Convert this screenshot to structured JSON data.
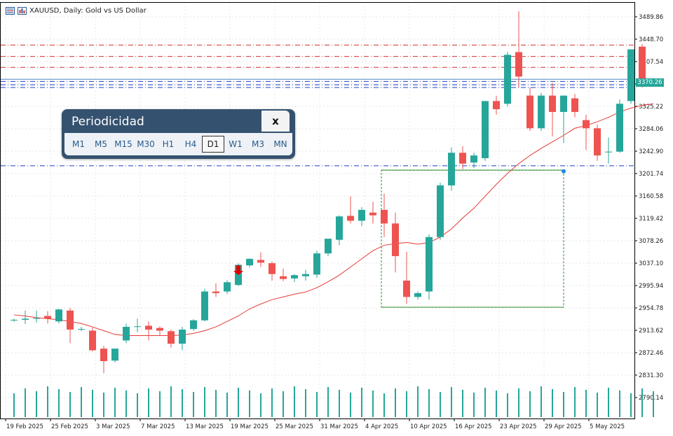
{
  "header": {
    "title": "XAUUSD, Daily:  Gold vs US Dollar",
    "icons": [
      "chart-window-icon",
      "bar-chart-icon"
    ]
  },
  "current_price": "3370.26",
  "colors": {
    "bull": "#26a69a",
    "bear": "#ef5350",
    "ma": "#e53935",
    "red_levels": "#d32f2f",
    "blue_levels": "#1a3fbf",
    "box": "#2e8b2e",
    "panel": "#34526f"
  },
  "periodicity_panel": {
    "title": "Periodicidad",
    "close_label": "x",
    "timeframes": [
      "M1",
      "M5",
      "M15",
      "M30",
      "H1",
      "H4",
      "D1",
      "W1",
      "M3",
      "MN"
    ],
    "selected": "D1"
  },
  "chart_data": {
    "type": "candlestick",
    "title": "XAUUSD, Daily:  Gold vs US Dollar",
    "y_ticks": [
      "3489.86",
      "3448.70",
      "3407.54",
      "3366.38",
      "3325.22",
      "3284.06",
      "3242.90",
      "3201.74",
      "3160.58",
      "3119.42",
      "3078.26",
      "3037.10",
      "2995.94",
      "2954.78",
      "2913.62",
      "2872.46",
      "2831.30",
      "2790.14"
    ],
    "x_ticks": [
      "19 Feb 2025",
      "25 Feb 2025",
      "3 Mar 2025",
      "7 Mar 2025",
      "13 Mar 2025",
      "19 Mar 2025",
      "25 Mar 2025",
      "31 Mar 2025",
      "4 Apr 2025",
      "10 Apr 2025",
      "16 Apr 2025",
      "23 Apr 2025",
      "29 Apr 2025",
      "5 May 2025"
    ],
    "ylim": [
      2775,
      3505
    ],
    "grid": true,
    "candles": [
      [
        2932,
        2935,
        2929,
        2933
      ],
      [
        2933,
        2950,
        2925,
        2935
      ],
      [
        2935,
        2950,
        2928,
        2936
      ],
      [
        2940,
        2949,
        2926,
        2935
      ],
      [
        2930,
        2953,
        2926,
        2952
      ],
      [
        2950,
        2955,
        2890,
        2915
      ],
      [
        2915,
        2920,
        2912,
        2916
      ],
      [
        2913,
        2919,
        2875,
        2877
      ],
      [
        2880,
        2885,
        2835,
        2857
      ],
      [
        2858,
        2880,
        2855,
        2880
      ],
      [
        2895,
        2926,
        2890,
        2920
      ],
      [
        2920,
        2935,
        2910,
        2921
      ],
      [
        2922,
        2930,
        2895,
        2915
      ],
      [
        2918,
        2921,
        2905,
        2913
      ],
      [
        2912,
        2915,
        2882,
        2889
      ],
      [
        2889,
        2920,
        2877,
        2915
      ],
      [
        2916,
        2934,
        2913,
        2932
      ],
      [
        2932,
        2990,
        2930,
        2985
      ],
      [
        2985,
        3000,
        2975,
        2982
      ],
      [
        2985,
        3006,
        2980,
        3002
      ],
      [
        2997,
        3037,
        2995,
        3034
      ],
      [
        3033,
        3046,
        3029,
        3045
      ],
      [
        3043,
        3057,
        3030,
        3038
      ],
      [
        3037,
        3040,
        3005,
        3017
      ],
      [
        3013,
        3027,
        3004,
        3008
      ],
      [
        3009,
        3017,
        3002,
        3015
      ],
      [
        3013,
        3025,
        3005,
        3017
      ],
      [
        3016,
        3060,
        3010,
        3055
      ],
      [
        3055,
        3080,
        3050,
        3082
      ],
      [
        3080,
        3125,
        3070,
        3123
      ],
      [
        3124,
        3160,
        3110,
        3115
      ],
      [
        3115,
        3140,
        3105,
        3135
      ],
      [
        3130,
        3150,
        3110,
        3125
      ],
      [
        3135,
        3165,
        3085,
        3110
      ],
      [
        3110,
        3130,
        3020,
        3050
      ],
      [
        3005,
        3058,
        2962,
        2975
      ],
      [
        2975,
        2985,
        2970,
        2982
      ],
      [
        2985,
        3090,
        2970,
        3085
      ],
      [
        3085,
        3185,
        3080,
        3180
      ],
      [
        3180,
        3250,
        3170,
        3240
      ],
      [
        3240,
        3252,
        3210,
        3220
      ],
      [
        3222,
        3240,
        3212,
        3235
      ],
      [
        3230,
        3335,
        3225,
        3335
      ],
      [
        3335,
        3345,
        3310,
        3320
      ],
      [
        3330,
        3425,
        3325,
        3420
      ],
      [
        3425,
        3500,
        3360,
        3380
      ],
      [
        3345,
        3360,
        3280,
        3285
      ],
      [
        3285,
        3350,
        3280,
        3345
      ],
      [
        3345,
        3368,
        3270,
        3315
      ],
      [
        3315,
        3345,
        3258,
        3345
      ],
      [
        3340,
        3348,
        3305,
        3315
      ],
      [
        3300,
        3310,
        3245,
        3285
      ],
      [
        3285,
        3292,
        3225,
        3235
      ],
      [
        3242,
        3268,
        3220,
        3242
      ],
      [
        3242,
        3338,
        3240,
        3330
      ],
      [
        3335,
        3430,
        3330,
        3430
      ],
      [
        3435,
        3440,
        3360,
        3363
      ],
      [
        3365,
        3376,
        3362,
        3370
      ]
    ],
    "ma_values": [
      2942,
      2940,
      2937,
      2935,
      2933,
      2930,
      2926,
      2920,
      2913,
      2906,
      2904,
      2904,
      2904,
      2904,
      2904,
      2905,
      2908,
      2913,
      2920,
      2930,
      2940,
      2953,
      2962,
      2970,
      2975,
      2980,
      2984,
      2992,
      3003,
      3015,
      3030,
      3045,
      3060,
      3070,
      3073,
      3075,
      3072,
      3075,
      3085,
      3100,
      3120,
      3138,
      3160,
      3182,
      3202,
      3220,
      3235,
      3248,
      3260,
      3272,
      3285,
      3290,
      3297,
      3305,
      3315,
      3322,
      3327,
      3330
    ],
    "volumes": [
      38,
      38,
      38,
      38,
      38,
      38,
      38,
      38,
      38,
      38,
      38,
      38,
      38,
      38,
      38,
      38,
      38,
      38,
      38,
      38,
      38,
      38,
      38,
      38,
      38,
      38,
      38,
      38,
      38,
      38,
      38,
      38,
      38,
      38,
      38,
      38,
      38,
      38,
      38,
      38,
      38,
      38,
      38,
      38,
      38,
      38,
      38,
      38,
      38,
      38,
      38,
      38,
      38,
      38,
      38,
      38,
      38,
      38
    ],
    "red_levels": [
      3438,
      3417,
      3397
    ],
    "blue_levels": [
      3371,
      3365,
      3360,
      3216
    ],
    "box_range": {
      "start_index": 33,
      "end_index": 49,
      "low": 2956,
      "high": 3208
    },
    "sell_arrow_index": 20,
    "blue_dot": {
      "index": 49,
      "value": 3206
    }
  }
}
